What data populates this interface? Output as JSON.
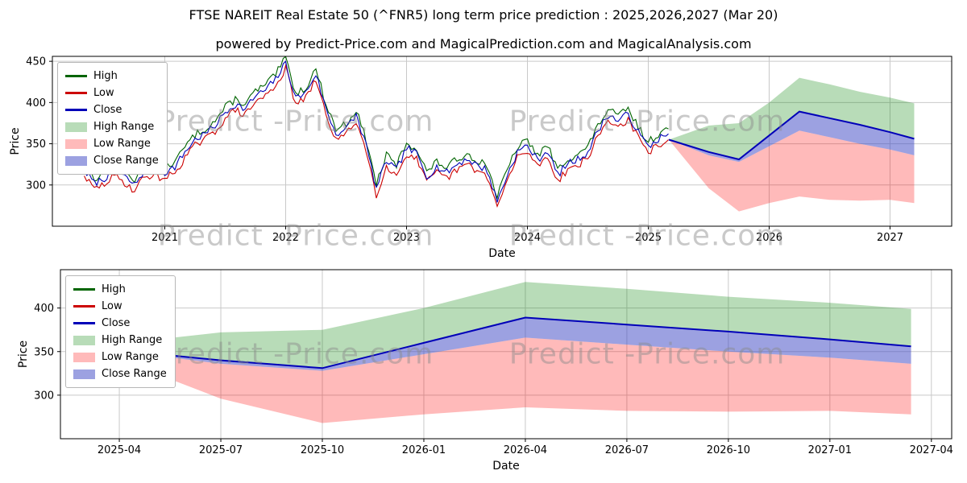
{
  "title": "FTSE NAREIT Real Estate 50 (^FNR5) long term price prediction : 2025,2026,2027 (Mar 20)",
  "subtitle": "powered by Predict-Price.com and MagicalPrediction.com and MagicalAnalysis.com",
  "watermark_text": "Predict -Price.com",
  "legend_labels": [
    "High",
    "Low",
    "Close",
    "High Range",
    "Low Range",
    "Close Range"
  ],
  "colors": {
    "high_line": "#006400",
    "low_line": "#cc0000",
    "close_line": "#0000b8",
    "high_range_fill": "rgba(0,128,0,0.28)",
    "low_range_fill": "rgba(255,0,0,0.27)",
    "close_range_fill": "rgba(58,68,195,0.5)",
    "grid": "#c9c9c9",
    "axis": "#000000",
    "text": "#000000"
  },
  "chart_data": [
    {
      "type": "line",
      "title": "",
      "xlabel": "Date",
      "ylabel": "Price",
      "xlim": [
        2020.07,
        2027.51
      ],
      "ylim": [
        250,
        456
      ],
      "grid": true,
      "legend_position": "upper-left",
      "xticks": {
        "values": [
          2021,
          2022,
          2023,
          2024,
          2025,
          2026,
          2027
        ],
        "labels": [
          "2021",
          "2022",
          "2023",
          "2024",
          "2025",
          "2026",
          "2027"
        ]
      },
      "yticks": [
        300,
        350,
        400,
        450
      ],
      "history": {
        "x_start": 2020.3333,
        "x_step": 0.083333,
        "high": [
          324,
          308,
          314,
          324,
          316,
          306,
          324,
          324,
          321,
          328,
          346,
          361,
          368,
          378,
          394,
          404,
          398,
          414,
          421,
          434,
          454,
          411,
          418,
          441,
          398,
          368,
          374,
          391,
          354,
          301,
          336,
          324,
          351,
          344,
          316,
          328,
          321,
          331,
          338,
          330,
          324,
          286,
          318,
          346,
          354,
          336,
          348,
          318,
          332,
          337,
          346,
          372,
          391,
          384,
          392,
          370,
          352,
          362,
          368
        ],
        "low": [
          311,
          295,
          301,
          311,
          303,
          293,
          311,
          311,
          308,
          315,
          333,
          348,
          355,
          365,
          381,
          391,
          385,
          401,
          408,
          421,
          441,
          398,
          405,
          428,
          385,
          355,
          361,
          378,
          341,
          288,
          323,
          311,
          338,
          331,
          303,
          315,
          308,
          318,
          325,
          317,
          311,
          273,
          305,
          333,
          341,
          323,
          335,
          305,
          319,
          324,
          333,
          359,
          378,
          371,
          379,
          357,
          339,
          349,
          355
        ],
        "close": [
          318,
          302,
          308,
          318,
          310,
          300,
          318,
          318,
          315,
          322,
          340,
          355,
          362,
          372,
          388,
          398,
          392,
          408,
          415,
          428,
          448,
          405,
          412,
          435,
          392,
          362,
          368,
          385,
          348,
          295,
          330,
          318,
          345,
          338,
          310,
          322,
          315,
          325,
          332,
          324,
          318,
          280,
          312,
          340,
          348,
          330,
          342,
          312,
          326,
          331,
          340,
          366,
          385,
          378,
          386,
          364,
          346,
          356,
          362
        ]
      },
      "prediction": {
        "x": [
          2025.17,
          2025.5,
          2025.75,
          2026.0,
          2026.25,
          2026.5,
          2026.75,
          2027.0,
          2027.2
        ],
        "high_range_top": [
          355,
          372,
          375,
          400,
          430,
          422,
          413,
          406,
          399
        ],
        "close": [
          355,
          340,
          331,
          360,
          389,
          381,
          373,
          364,
          356
        ],
        "close_range_bottom": [
          355,
          336,
          328,
          347,
          366,
          358,
          350,
          343,
          336
        ],
        "low_range_bottom": [
          355,
          296,
          268,
          278,
          286,
          282,
          281,
          282,
          278
        ]
      }
    },
    {
      "type": "line",
      "title": "",
      "xlabel": "Date",
      "ylabel": "Price",
      "xlim": [
        2025.105,
        2027.3
      ],
      "ylim": [
        250,
        444
      ],
      "grid": true,
      "legend_position": "upper-left",
      "xticks": {
        "values": [
          2025.25,
          2025.5,
          2025.75,
          2026.0,
          2026.25,
          2026.5,
          2026.75,
          2027.0,
          2027.25
        ],
        "labels": [
          "2025-04",
          "2025-07",
          "2025-10",
          "2026-01",
          "2026-04",
          "2026-07",
          "2026-10",
          "2027-01",
          "2027-04"
        ]
      },
      "yticks": [
        300,
        350,
        400
      ],
      "prediction": {
        "x": [
          2025.17,
          2025.5,
          2025.75,
          2026.0,
          2026.25,
          2026.5,
          2026.75,
          2027.0,
          2027.2
        ],
        "high_range_top": [
          355,
          372,
          375,
          400,
          430,
          422,
          413,
          406,
          399
        ],
        "close": [
          355,
          340,
          331,
          360,
          389,
          381,
          373,
          364,
          356
        ],
        "close_range_bottom": [
          355,
          336,
          328,
          347,
          366,
          358,
          350,
          343,
          336
        ],
        "low_range_bottom": [
          355,
          296,
          268,
          278,
          286,
          282,
          281,
          282,
          278
        ]
      }
    }
  ]
}
